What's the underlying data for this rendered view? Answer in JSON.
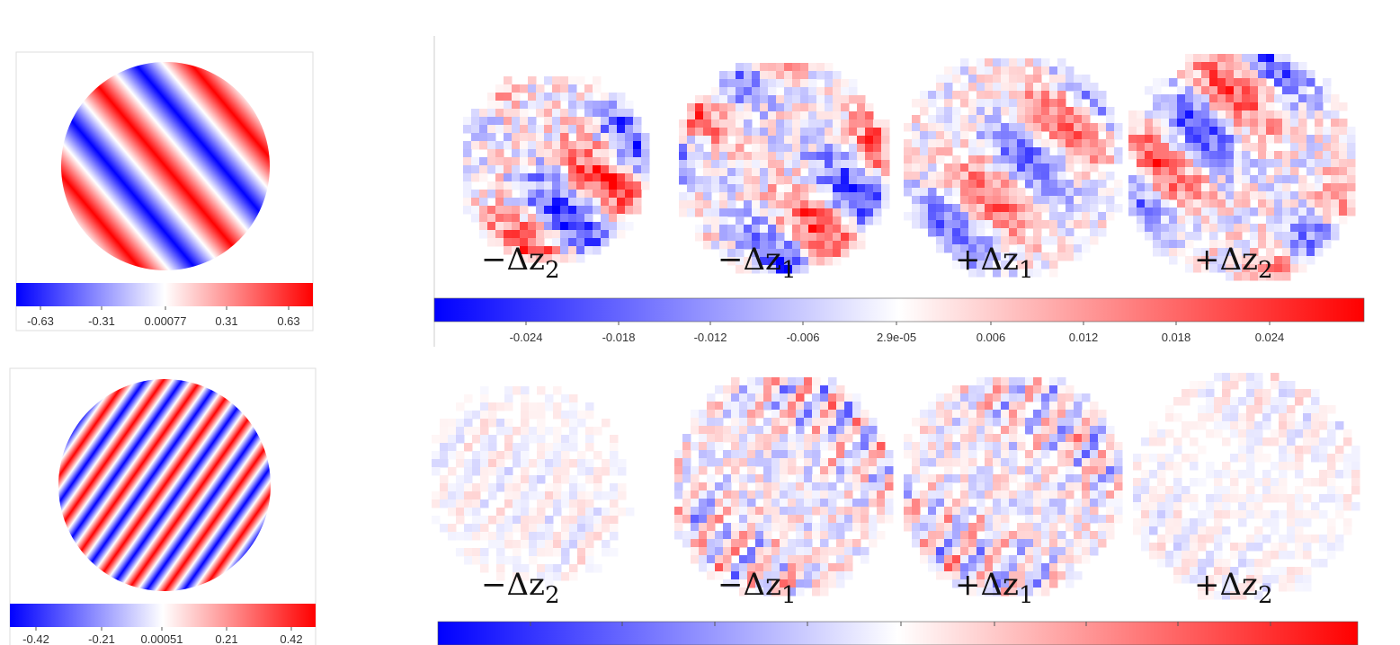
{
  "panels": [
    {
      "colorbar": {
        "ticks": [
          "-0.63",
          "-0.31",
          "0.00077",
          "0.31",
          "0.63"
        ]
      }
    },
    {
      "labels": [
        {
          "base": "−Δz",
          "sub": "2"
        },
        {
          "base": "−Δz",
          "sub": "1"
        },
        {
          "base": "+Δz",
          "sub": "1"
        },
        {
          "base": "+Δz",
          "sub": "2"
        }
      ],
      "colorbar": {
        "ticks": [
          "-0.024",
          "-0.018",
          "-0.012",
          "-0.006",
          "2.9e-05",
          "0.006",
          "0.012",
          "0.018",
          "0.024"
        ]
      }
    },
    {
      "colorbar": {
        "ticks": [
          "-0.42",
          "-0.21",
          "0.00051",
          "0.21",
          "0.42"
        ]
      }
    },
    {
      "labels": [
        {
          "base": "−Δz",
          "sub": "2"
        },
        {
          "base": "−Δz",
          "sub": "1"
        },
        {
          "base": "+Δz",
          "sub": "1"
        },
        {
          "base": "+Δz",
          "sub": "2"
        }
      ]
    }
  ]
}
